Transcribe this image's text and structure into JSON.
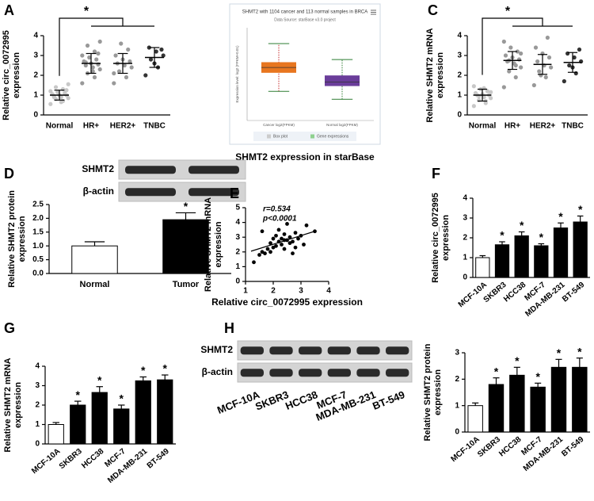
{
  "chart_data": [
    {
      "type": "strip",
      "panel": "A",
      "ylabel": [
        "Relative circ_0072995",
        "expression"
      ],
      "categories": [
        "Normal",
        "HR+",
        "HER2+",
        "TNBC"
      ],
      "points": [
        [
          0.55,
          0.7,
          0.8,
          0.85,
          0.9,
          0.95,
          1.0,
          1.0,
          1.05,
          1.1,
          1.15,
          1.2,
          1.3,
          1.4,
          1.55,
          0.65,
          0.9,
          1.25
        ],
        [
          1.6,
          1.9,
          2.1,
          2.3,
          2.4,
          2.5,
          2.55,
          2.6,
          2.7,
          2.8,
          2.9,
          3.0,
          3.2,
          3.5,
          3.7,
          2.2,
          2.65,
          3.1
        ],
        [
          1.6,
          1.9,
          2.2,
          2.4,
          2.5,
          2.6,
          2.7,
          2.8,
          3.0,
          3.3,
          3.6,
          2.1
        ],
        [
          2.0,
          2.4,
          2.8,
          3.0,
          3.2,
          3.4,
          3.3,
          2.6
        ]
      ],
      "values": [
        1.0,
        2.6,
        2.6,
        2.9
      ],
      "errors": [
        0.25,
        0.5,
        0.5,
        0.5
      ],
      "colors": [
        "#c8c8c8",
        "#999999",
        "#999999",
        "#333333"
      ],
      "significance": "*",
      "ylim": [
        0,
        4
      ],
      "yticks": [
        0,
        1,
        2,
        3,
        4
      ]
    },
    {
      "type": "box",
      "title": "SHMT2 with 1104 cancer and 113 normal samples in BRCA",
      "subtitle": "Data Source: starBase v3.0 project",
      "ylabel": "Expression level: log2 (FPKM+0.01)",
      "caption": "SHMT2 expression in starBase",
      "categories": [
        "Cancer log2(FPKM)",
        "Normal log2(FPKM)"
      ],
      "colors": [
        "#e8761f",
        "#6a3d9a"
      ],
      "boxes": [
        [
          4.2,
          5.6,
          6.0,
          6.4,
          7.8
        ],
        [
          3.6,
          4.6,
          4.9,
          5.4,
          6.6
        ]
      ],
      "legend": [
        "Box plot",
        "Gene expressions"
      ],
      "ylim": [
        2,
        9
      ]
    },
    {
      "type": "strip",
      "panel": "C",
      "ylabel": [
        "Relative SHMT2 mRNA",
        "expression"
      ],
      "categories": [
        "Normal",
        "HR+",
        "HER2+",
        "TNBC"
      ],
      "points": [
        [
          0.45,
          0.6,
          0.75,
          0.85,
          0.9,
          1.0,
          1.0,
          1.05,
          1.1,
          1.2,
          1.3,
          1.45,
          0.7,
          0.95,
          1.15,
          1.35
        ],
        [
          1.4,
          1.9,
          2.2,
          2.4,
          2.6,
          2.7,
          2.8,
          2.9,
          3.0,
          3.2,
          3.4,
          3.7,
          2.5,
          2.75,
          3.1
        ],
        [
          1.5,
          1.9,
          2.2,
          2.4,
          2.5,
          2.7,
          2.9,
          3.1,
          3.4,
          3.9,
          2.0
        ],
        [
          1.7,
          2.1,
          2.5,
          2.7,
          2.9,
          3.1,
          3.3,
          2.4
        ]
      ],
      "values": [
        1.0,
        2.75,
        2.55,
        2.65
      ],
      "errors": [
        0.3,
        0.45,
        0.5,
        0.5
      ],
      "colors": [
        "#c8c8c8",
        "#999999",
        "#999999",
        "#333333"
      ],
      "significance": "*",
      "ylim": [
        0,
        4
      ],
      "yticks": [
        0,
        1,
        2,
        3,
        4
      ]
    },
    {
      "type": "bar",
      "panel": "D",
      "ylabel": [
        "Relative SHMT2 protein",
        "expression"
      ],
      "categories": [
        "Normal",
        "Tumor"
      ],
      "values": [
        1.0,
        1.95
      ],
      "errors": [
        0.15,
        0.25
      ],
      "colors": [
        "#ffffff",
        "#000000"
      ],
      "annotations": [
        null,
        "*"
      ],
      "rotate": false,
      "blot": [
        "SHMT2",
        "β-actin"
      ],
      "ylim": [
        0,
        2.5
      ],
      "yticks": [
        {
          "value": 0,
          "label": "0.0"
        },
        {
          "value": 0.5,
          "label": "0.5"
        },
        {
          "value": 1,
          "label": "1.0"
        },
        {
          "value": 1.5,
          "label": "1.5"
        },
        {
          "value": 2,
          "label": "2.0"
        },
        {
          "value": 2.5,
          "label": "2.5"
        }
      ]
    },
    {
      "type": "scatter",
      "panel": "E",
      "xlabel": "Relative circ_0072995 expression",
      "ylabel": [
        "Relative SHMT2 mRNA",
        "expression"
      ],
      "annotations": [
        "r=0.534",
        "p<0.0001"
      ],
      "x": [
        1.3,
        1.5,
        1.6,
        1.7,
        1.8,
        1.9,
        1.9,
        2.0,
        2.1,
        2.1,
        2.2,
        2.2,
        2.3,
        2.3,
        2.4,
        2.4,
        2.5,
        2.5,
        2.6,
        2.6,
        2.7,
        2.8,
        2.8,
        2.9,
        3.0,
        3.1,
        3.2,
        3.5,
        1.6,
        2.0,
        2.4,
        2.7
      ],
      "y": [
        1.3,
        1.8,
        3.4,
        1.9,
        2.2,
        2.6,
        2.0,
        2.9,
        2.4,
        3.1,
        2.7,
        3.5,
        2.5,
        2.9,
        3.2,
        2.2,
        2.8,
        3.9,
        2.6,
        3.0,
        2.7,
        2.3,
        3.3,
        2.9,
        3.1,
        2.5,
        3.8,
        3.4,
        2.0,
        2.3,
        2.8,
        1.9
      ],
      "fit": {
        "x": [
          1.2,
          3.5
        ],
        "y": [
          2.05,
          3.4
        ]
      },
      "xlim": [
        1,
        4
      ],
      "xticks": [
        1,
        2,
        3,
        4
      ],
      "ylim": [
        0,
        5
      ],
      "yticks": [
        0,
        1,
        2,
        3,
        4,
        5
      ]
    },
    {
      "type": "bar",
      "panel": "F",
      "ylabel": [
        "Relative circ_0072995",
        "expression"
      ],
      "categories": [
        "MCF-10A",
        "SKBR3",
        "HCC38",
        "MCF-7",
        "MDA-MB-231",
        "BT-549"
      ],
      "values": [
        1.0,
        1.65,
        2.1,
        1.6,
        2.5,
        2.8
      ],
      "errors": [
        0.1,
        0.15,
        0.2,
        0.1,
        0.25,
        0.3
      ],
      "colors": [
        "#ffffff",
        "#000000",
        "#000000",
        "#000000",
        "#000000",
        "#000000"
      ],
      "annotations": [
        null,
        "*",
        "*",
        "*",
        "*",
        "*"
      ],
      "rotate": true,
      "ylim": [
        0,
        4
      ],
      "yticks": [
        0,
        1,
        2,
        3,
        4
      ]
    },
    {
      "type": "bar",
      "panel": "G",
      "ylabel": [
        "Relative SHMT2 mRNA",
        "expression"
      ],
      "categories": [
        "MCF-10A",
        "SKBR3",
        "HCC38",
        "MCF-7",
        "MDA-MB-231",
        "BT-549"
      ],
      "values": [
        1.0,
        2.0,
        2.65,
        1.8,
        3.25,
        3.3
      ],
      "errors": [
        0.1,
        0.2,
        0.3,
        0.2,
        0.2,
        0.25
      ],
      "colors": [
        "#ffffff",
        "#000000",
        "#000000",
        "#000000",
        "#000000",
        "#000000"
      ],
      "annotations": [
        null,
        "*",
        "*",
        "*",
        "*",
        "*"
      ],
      "rotate": true,
      "ylim": [
        0,
        4
      ],
      "yticks": [
        0,
        1,
        2,
        3,
        4
      ]
    },
    {
      "type": "bar",
      "panel": "H",
      "ylabel": [
        "Relative SHMT2 protein",
        "expression"
      ],
      "categories": [
        "MCF-10A",
        "SKBR3",
        "HCC38",
        "MCF-7",
        "MDA-MB-231",
        "BT-549"
      ],
      "values": [
        1.0,
        1.8,
        2.15,
        1.7,
        2.45,
        2.45
      ],
      "errors": [
        0.1,
        0.25,
        0.3,
        0.15,
        0.3,
        0.35
      ],
      "colors": [
        "#ffffff",
        "#000000",
        "#000000",
        "#000000",
        "#000000",
        "#000000"
      ],
      "annotations": [
        null,
        "*",
        "*",
        "*",
        "*",
        "*"
      ],
      "rotate": true,
      "ylim": [
        0,
        3
      ],
      "yticks": [
        0,
        1,
        2,
        3
      ],
      "blot": [
        "SHMT2",
        "β-actin"
      ],
      "lanes": [
        "MCF-10A",
        "SKBR3",
        "HCC38",
        "MCF-7",
        "MDA-MB-231",
        "BT-549"
      ]
    }
  ]
}
